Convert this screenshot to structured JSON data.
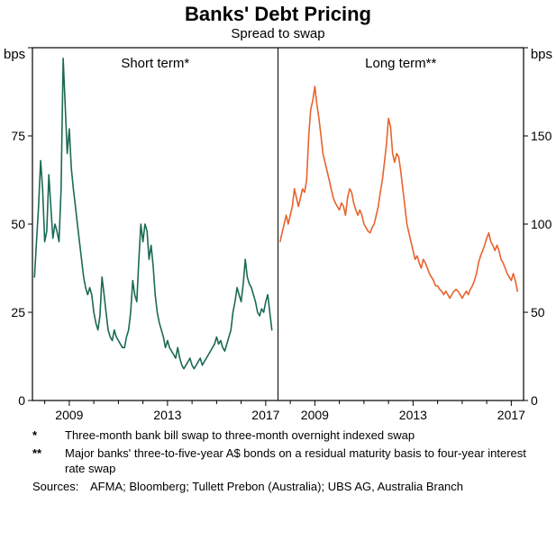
{
  "title": "Banks' Debt Pricing",
  "subtitle": "Spread to swap",
  "axis": {
    "left_unit": "bps",
    "right_unit": "bps"
  },
  "chart_data": {
    "type": "line",
    "x_start": 2007.583,
    "x_step": 0.083333,
    "x_range": [
      2007.5,
      2017.5
    ],
    "x_ticks_labeled": [
      2009,
      2013,
      2017
    ],
    "panels": [
      {
        "label": "Short term*",
        "color": "#1b6a55",
        "axis_side": "left",
        "ylim": [
          0,
          100
        ],
        "yticks": [
          0,
          25,
          50,
          75,
          100
        ],
        "ytick_labels": [
          "0",
          "25",
          "50",
          "75"
        ],
        "values": [
          35,
          45,
          55,
          68,
          60,
          45,
          48,
          64,
          55,
          46,
          50,
          48,
          45,
          60,
          97,
          84,
          70,
          77,
          66,
          60,
          55,
          50,
          45,
          40,
          35,
          32,
          30,
          32,
          30,
          25,
          22,
          20,
          24,
          35,
          30,
          25,
          20,
          18,
          17,
          20,
          18,
          17,
          16,
          15,
          15,
          18,
          20,
          25,
          34,
          30,
          28,
          40,
          50,
          45,
          50,
          48,
          40,
          44,
          38,
          30,
          25,
          22,
          20,
          18,
          15,
          17,
          15,
          14,
          13,
          12,
          15,
          12,
          10,
          9,
          10,
          11,
          12,
          10,
          9,
          10,
          11,
          12,
          10,
          11,
          12,
          13,
          14,
          15,
          16,
          18,
          16,
          17,
          15,
          14,
          16,
          18,
          20,
          25,
          28,
          32,
          30,
          28,
          33,
          40,
          35,
          33,
          32,
          30,
          28,
          25,
          24,
          26,
          25,
          28,
          30,
          25,
          20
        ]
      },
      {
        "label": "Long term**",
        "color": "#e8632e",
        "axis_side": "right",
        "ylim": [
          0,
          200
        ],
        "yticks": [
          0,
          50,
          100,
          150,
          200
        ],
        "ytick_labels": [
          "0",
          "50",
          "100",
          "150"
        ],
        "values": [
          90,
          95,
          100,
          105,
          100,
          105,
          110,
          120,
          115,
          110,
          115,
          120,
          118,
          125,
          150,
          165,
          170,
          178,
          168,
          160,
          150,
          140,
          135,
          130,
          125,
          120,
          115,
          112,
          110,
          108,
          112,
          110,
          105,
          115,
          120,
          118,
          112,
          108,
          105,
          108,
          105,
          100,
          98,
          96,
          95,
          98,
          100,
          105,
          110,
          118,
          125,
          135,
          145,
          160,
          155,
          140,
          135,
          140,
          138,
          130,
          120,
          110,
          100,
          95,
          90,
          85,
          80,
          82,
          78,
          75,
          80,
          78,
          75,
          72,
          70,
          68,
          65,
          65,
          63,
          62,
          60,
          62,
          60,
          58,
          60,
          62,
          63,
          62,
          60,
          58,
          60,
          62,
          60,
          63,
          65,
          68,
          72,
          78,
          82,
          85,
          88,
          92,
          95,
          90,
          88,
          85,
          88,
          85,
          80,
          78,
          75,
          72,
          70,
          68,
          72,
          68,
          62
        ]
      }
    ]
  },
  "footnotes": [
    {
      "marker": "*",
      "text": "Three-month bank bill swap to three-month overnight indexed swap"
    },
    {
      "marker": "**",
      "text": "Major banks' three-to-five-year A$ bonds on a residual maturity basis to four-year interest rate swap"
    }
  ],
  "sources": {
    "label": "Sources:",
    "text": "AFMA; Bloomberg; Tullett Prebon (Australia); UBS AG, Australia Branch"
  }
}
